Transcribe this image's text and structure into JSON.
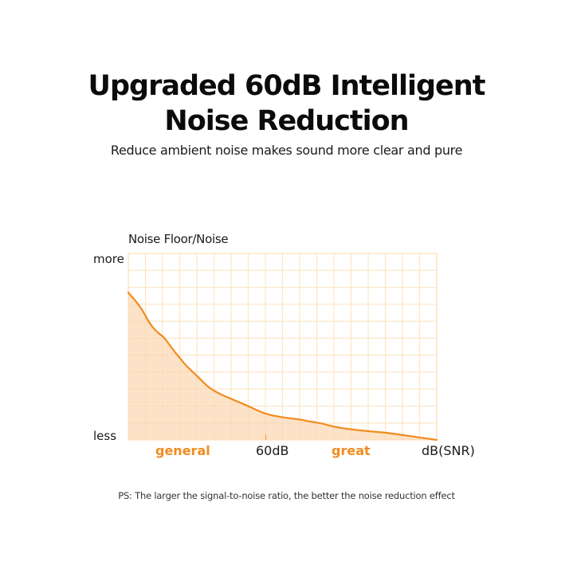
{
  "header": {
    "title_line1": "Upgraded 60dB Intelligent",
    "title_line2": "Noise Reduction",
    "subtitle": "Reduce ambient noise makes sound more clear and pure"
  },
  "footer": {
    "note": "PS: The larger the signal-to-noise ratio, the better the noise reduction effect"
  },
  "colors": {
    "accent": "#f28b1f",
    "fill": "#fce3c8",
    "grid": "#fde6c4",
    "text": "#111111"
  },
  "chart_data": {
    "type": "area",
    "title": "Noise Floor/Noise vs dB(SNR)",
    "ylabel": "Noise Floor/Noise",
    "xlabel": "dB(SNR)",
    "y_tick_labels": [
      "more",
      "less"
    ],
    "x_tick_labels": [
      "general",
      "60dB",
      "great",
      "dB(SNR)"
    ],
    "x_annotations": [
      {
        "label": "general",
        "color": "#f28b1f",
        "region": "below 60dB"
      },
      {
        "label": "60dB",
        "color": "#111111",
        "position": 60
      },
      {
        "label": "great",
        "color": "#f28b1f",
        "region": "above 60dB"
      }
    ],
    "grid": true,
    "grid_columns": 18,
    "grid_rows": 11,
    "xlim": [
      0,
      120
    ],
    "ylim": [
      0,
      100
    ],
    "series": [
      {
        "name": "Noise Floor/Noise",
        "x": [
          0,
          5,
          8,
          11,
          14,
          17,
          20,
          23,
          27,
          32,
          40,
          47,
          53,
          60,
          67,
          70,
          75,
          80,
          90,
          100,
          110,
          120
        ],
        "values": [
          79,
          71,
          63,
          58,
          55,
          49,
          44,
          39,
          34,
          27,
          22,
          18,
          14,
          12,
          11,
          10,
          9,
          7,
          5,
          4,
          2,
          0
        ]
      }
    ]
  },
  "axis": {
    "y_title": "Noise Floor/Noise",
    "y_top": "more",
    "y_bottom": "less",
    "x_general": "general",
    "x_60db": "60dB",
    "x_great": "great",
    "x_unit": "dB(SNR)"
  }
}
